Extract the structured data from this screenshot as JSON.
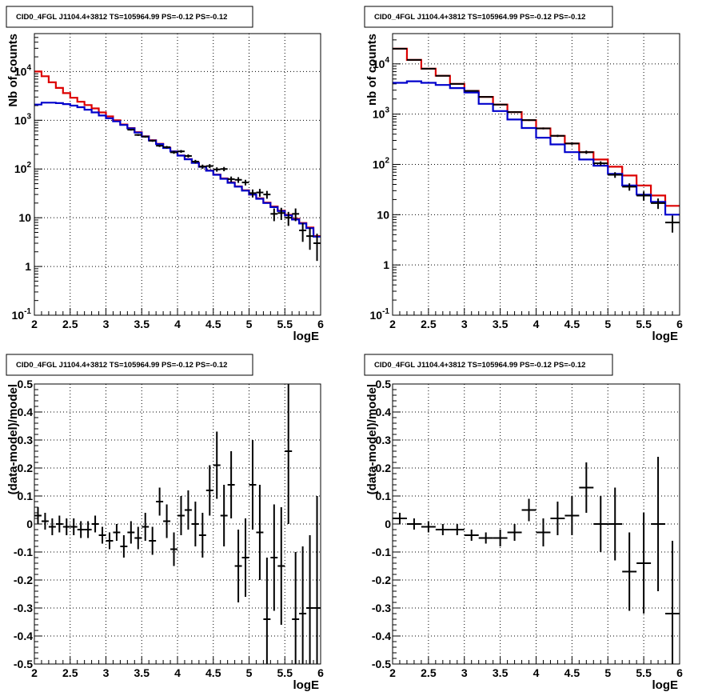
{
  "colors": {
    "background": "#ffffff",
    "data": "#000000",
    "model_total": "#dd0000",
    "model_source": "#0000cc",
    "grid": "#000000"
  },
  "chart_data": [
    {
      "id": "top-left",
      "type": "line",
      "title": "CID0_4FGL J1104.4+3812 TS=105964.99 PS=-0.12 PS=-0.12",
      "xlabel": "logE",
      "ylabel": "Nb of counts",
      "xlim": [
        2,
        6
      ],
      "ylim": [
        0.1,
        60000
      ],
      "yscale": "log",
      "grid": true,
      "x_ticks": [
        "2",
        "2.5",
        "3",
        "3.5",
        "4",
        "4.5",
        "5",
        "5.5",
        "6"
      ],
      "y_ticks": [
        "10^-1",
        "1",
        "10",
        "10^2",
        "10^3",
        "10^4"
      ],
      "bin_width": 0.1,
      "series": [
        {
          "role": "model_total",
          "x": [
            2.05,
            2.15,
            2.25,
            2.35,
            2.45,
            2.55,
            2.65,
            2.75,
            2.85,
            2.95,
            3.05,
            3.15,
            3.25,
            3.35,
            3.45,
            3.55,
            3.65,
            3.75,
            3.85,
            3.95,
            4.05,
            4.15,
            4.25,
            4.35,
            4.45,
            4.55,
            4.65,
            4.75,
            4.85,
            4.95,
            5.05,
            5.15,
            5.25,
            5.35,
            5.45,
            5.55,
            5.65,
            5.75,
            5.85,
            5.95
          ],
          "y": [
            10000,
            8000,
            6000,
            4600,
            3600,
            2900,
            2400,
            2050,
            1750,
            1450,
            1200,
            1000,
            820,
            690,
            570,
            470,
            390,
            330,
            275,
            230,
            190,
            160,
            135,
            112,
            93,
            77,
            64,
            53,
            44,
            36.5,
            30,
            25,
            20.5,
            17,
            14,
            11.5,
            9.5,
            7.8,
            6.3,
            4.2
          ]
        },
        {
          "role": "model_source",
          "x": [
            2.05,
            2.15,
            2.25,
            2.35,
            2.45,
            2.55,
            2.65,
            2.75,
            2.85,
            2.95,
            3.05,
            3.15,
            3.25,
            3.35,
            3.45,
            3.55,
            3.65,
            3.75,
            3.85,
            3.95,
            4.05,
            4.15,
            4.25,
            4.35,
            4.45,
            4.55,
            4.65,
            4.75,
            4.85,
            4.95,
            5.05,
            5.15,
            5.25,
            5.35,
            5.45,
            5.55,
            5.65,
            5.75,
            5.85,
            5.95
          ],
          "y": [
            2100,
            2300,
            2300,
            2250,
            2150,
            2000,
            1850,
            1650,
            1450,
            1250,
            1100,
            950,
            800,
            680,
            560,
            465,
            385,
            325,
            270,
            228,
            188,
            158,
            133,
            111,
            92,
            76,
            63,
            52,
            43.5,
            36,
            30,
            24.5,
            20,
            16.5,
            13.7,
            11.2,
            9.2,
            7.6,
            6.1,
            4.1
          ]
        },
        {
          "role": "data",
          "x": [
            3.35,
            3.45,
            3.55,
            3.65,
            3.75,
            3.85,
            3.95,
            4.05,
            4.15,
            4.25,
            4.35,
            4.45,
            4.55,
            4.65,
            4.75,
            4.85,
            4.95,
            5.05,
            5.15,
            5.25,
            5.35,
            5.45,
            5.55,
            5.65,
            5.75,
            5.85,
            5.95
          ],
          "y": [
            640,
            500,
            460,
            380,
            300,
            280,
            220,
            230,
            185,
            142,
            112,
            115,
            98,
            100,
            62,
            60,
            53,
            32,
            33,
            30,
            12,
            12.5,
            10,
            12,
            5.5,
            4.2,
            3
          ],
          "yerr": [
            25,
            22,
            21,
            19,
            17,
            17,
            15,
            15,
            14,
            12,
            11,
            11,
            10,
            10,
            8,
            8,
            7,
            6,
            6,
            5.5,
            3.5,
            3.5,
            3.2,
            3.5,
            2.3,
            2,
            1.7
          ]
        }
      ]
    },
    {
      "id": "top-right",
      "type": "line",
      "title": "CID0_4FGL J1104.4+3812 TS=105964.99 PS=-0.12 PS=-0.12",
      "xlabel": "logE",
      "ylabel": "nb of counts",
      "xlim": [
        2,
        6
      ],
      "ylim": [
        0.1,
        40000
      ],
      "yscale": "log",
      "grid": true,
      "x_ticks": [
        "2",
        "2.5",
        "3",
        "3.5",
        "4",
        "4.5",
        "5",
        "5.5",
        "6"
      ],
      "y_ticks": [
        "10^-1",
        "1",
        "10",
        "10^2",
        "10^3",
        "10^4"
      ],
      "bin_width": 0.2,
      "series": [
        {
          "role": "model_total",
          "x": [
            2.1,
            2.3,
            2.5,
            2.7,
            2.9,
            3.1,
            3.3,
            3.5,
            3.7,
            3.9,
            4.1,
            4.3,
            4.5,
            4.7,
            4.9,
            5.1,
            5.3,
            5.5,
            5.7,
            5.9
          ],
          "y": [
            20000,
            12000,
            8000,
            5800,
            4000,
            2900,
            2200,
            1550,
            1100,
            760,
            520,
            370,
            260,
            175,
            125,
            90,
            60,
            38,
            24,
            15
          ]
        },
        {
          "role": "model_source",
          "x": [
            2.1,
            2.3,
            2.5,
            2.7,
            2.9,
            3.1,
            3.3,
            3.5,
            3.7,
            3.9,
            4.1,
            4.3,
            4.5,
            4.7,
            4.9,
            5.1,
            5.3,
            5.5,
            5.7,
            5.9
          ],
          "y": [
            4200,
            4500,
            4200,
            3800,
            3300,
            2700,
            1600,
            1150,
            780,
            530,
            340,
            250,
            175,
            125,
            94,
            65,
            38,
            25,
            18,
            10
          ]
        },
        {
          "role": "data",
          "x": [
            2.1,
            2.3,
            2.5,
            2.7,
            2.9,
            3.1,
            3.3,
            3.5,
            3.7,
            3.9,
            4.1,
            4.3,
            4.5,
            4.7,
            4.9,
            5.1,
            5.3,
            5.5,
            5.7,
            5.9
          ],
          "y": [
            20000,
            12000,
            8000,
            5800,
            4000,
            2900,
            2200,
            1550,
            1100,
            760,
            520,
            370,
            260,
            175,
            105,
            62,
            36,
            24,
            17,
            7
          ],
          "yerr": [
            140,
            110,
            90,
            76,
            63,
            54,
            47,
            39,
            33,
            28,
            23,
            19,
            16,
            13,
            10,
            8,
            6,
            5,
            4,
            2.6
          ]
        }
      ]
    },
    {
      "id": "bottom-left",
      "type": "scatter",
      "title": "CID0_4FGL J1104.4+3812 TS=105964.99 PS=-0.12 PS=-0.12",
      "xlabel": "logE",
      "ylabel": "(data-model)/model",
      "xlim": [
        2,
        6
      ],
      "ylim": [
        -0.5,
        0.5
      ],
      "yscale": "linear",
      "grid": true,
      "x_ticks": [
        "2",
        "2.5",
        "3",
        "3.5",
        "4",
        "4.5",
        "5",
        "5.5",
        "6"
      ],
      "y_ticks": [
        "-0.5",
        "-0.4",
        "-0.3",
        "-0.2",
        "-0.1",
        "0",
        "0.1",
        "0.2",
        "0.3",
        "0.4",
        "0.5"
      ],
      "bin_width": 0.1,
      "series": [
        {
          "role": "data",
          "x": [
            2.05,
            2.15,
            2.25,
            2.35,
            2.45,
            2.55,
            2.65,
            2.75,
            2.85,
            2.95,
            3.05,
            3.15,
            3.25,
            3.35,
            3.45,
            3.55,
            3.65,
            3.75,
            3.85,
            3.95,
            4.05,
            4.15,
            4.25,
            4.35,
            4.45,
            4.55,
            4.65,
            4.75,
            4.85,
            4.95,
            5.05,
            5.15,
            5.25,
            5.35,
            5.45,
            5.55,
            5.65,
            5.75,
            5.85,
            5.95
          ],
          "y": [
            0.03,
            0.01,
            -0.01,
            0.0,
            -0.01,
            -0.01,
            -0.02,
            -0.02,
            0.0,
            -0.04,
            -0.06,
            -0.03,
            -0.08,
            -0.03,
            -0.05,
            -0.01,
            -0.06,
            0.08,
            0.01,
            -0.09,
            0.03,
            0.05,
            0.0,
            -0.04,
            0.12,
            0.21,
            0.03,
            0.14,
            -0.15,
            -0.12,
            0.14,
            -0.03,
            -0.34,
            -0.12,
            -0.15,
            0.26,
            -0.34,
            -0.32,
            -0.3,
            -0.3
          ],
          "yerr": [
            0.03,
            0.03,
            0.03,
            0.03,
            0.03,
            0.03,
            0.03,
            0.03,
            0.03,
            0.03,
            0.03,
            0.03,
            0.04,
            0.04,
            0.04,
            0.05,
            0.05,
            0.05,
            0.06,
            0.06,
            0.07,
            0.07,
            0.08,
            0.08,
            0.09,
            0.12,
            0.11,
            0.12,
            0.13,
            0.14,
            0.16,
            0.17,
            0.22,
            0.19,
            0.21,
            0.26,
            0.24,
            0.24,
            0.26,
            0.4
          ]
        }
      ]
    },
    {
      "id": "bottom-right",
      "type": "scatter",
      "title": "CID0_4FGL J1104.4+3812 TS=105964.99 PS=-0.12 PS=-0.12",
      "xlabel": "logE",
      "ylabel": "(data-model)/model",
      "xlim": [
        2,
        6
      ],
      "ylim": [
        -0.5,
        0.5
      ],
      "yscale": "linear",
      "grid": true,
      "x_ticks": [
        "2",
        "2.5",
        "3",
        "3.5",
        "4",
        "4.5",
        "5",
        "5.5",
        "6"
      ],
      "y_ticks": [
        "-0.5",
        "-0.4",
        "-0.3",
        "-0.2",
        "-0.1",
        "0",
        "0.1",
        "0.2",
        "0.3",
        "0.4",
        "0.5"
      ],
      "bin_width": 0.2,
      "series": [
        {
          "role": "data",
          "x": [
            2.1,
            2.3,
            2.5,
            2.7,
            2.9,
            3.1,
            3.3,
            3.5,
            3.7,
            3.9,
            4.1,
            4.3,
            4.5,
            4.7,
            4.9,
            5.1,
            5.3,
            5.5,
            5.7,
            5.9
          ],
          "y": [
            0.02,
            0.0,
            -0.01,
            -0.02,
            -0.02,
            -0.04,
            -0.05,
            -0.05,
            -0.03,
            0.05,
            -0.03,
            0.02,
            0.03,
            0.13,
            0.0,
            0.0,
            -0.17,
            -0.14,
            0.0,
            -0.32
          ],
          "yerr": [
            0.02,
            0.02,
            0.02,
            0.02,
            0.02,
            0.02,
            0.02,
            0.03,
            0.03,
            0.04,
            0.05,
            0.06,
            0.07,
            0.09,
            0.1,
            0.13,
            0.14,
            0.18,
            0.24,
            0.26
          ]
        }
      ]
    }
  ]
}
